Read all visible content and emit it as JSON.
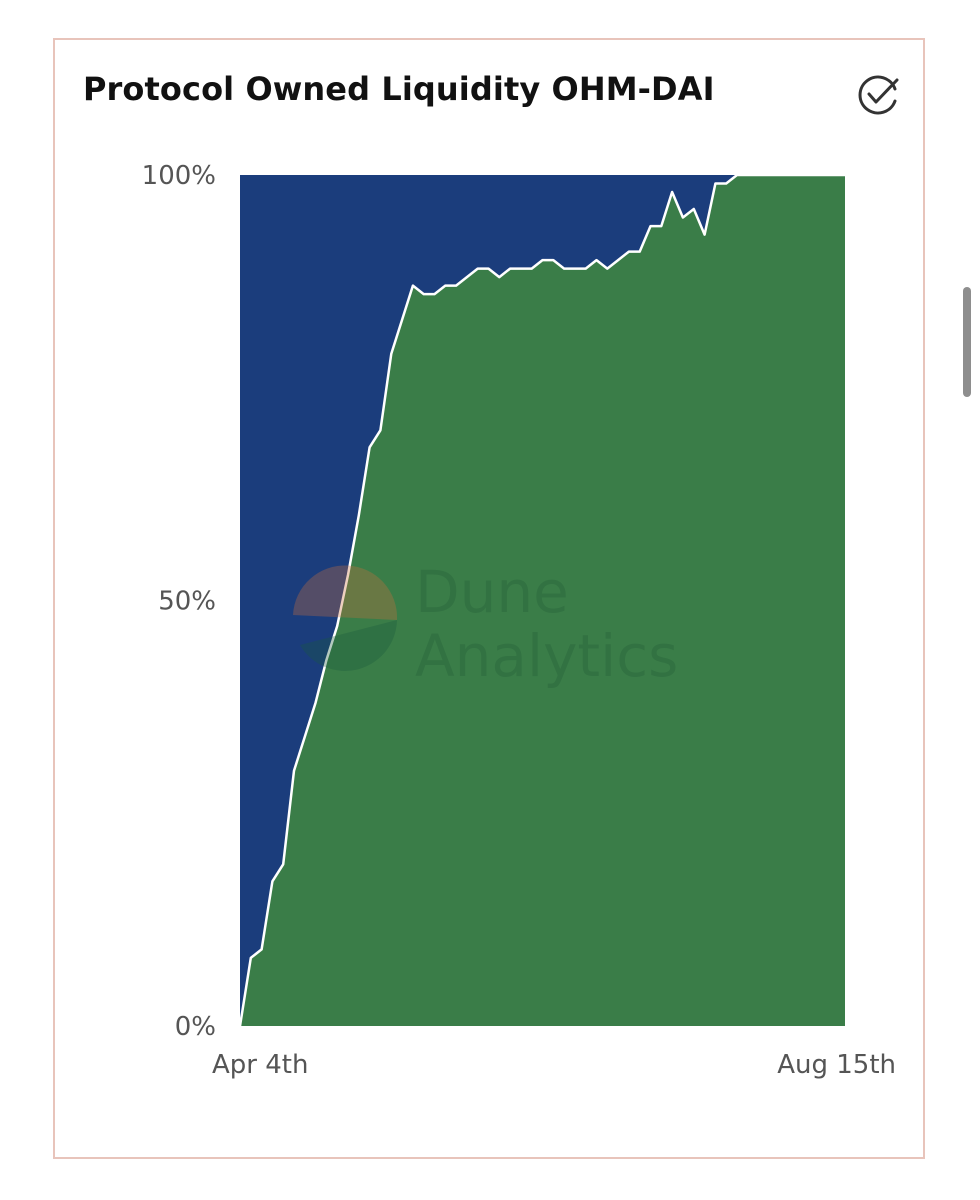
{
  "card": {
    "title": "Protocol Owned Liquidity OHM-DAI"
  },
  "watermark": {
    "line1": "Dune",
    "line2": "Analytics"
  },
  "chart_data": {
    "type": "area",
    "stacked": true,
    "normalized": true,
    "title": "Protocol Owned Liquidity OHM-DAI",
    "ylim": [
      0,
      100
    ],
    "y_ticks": [
      "0%",
      "50%",
      "100%"
    ],
    "x_ticks": [
      "Apr 4th",
      "Aug 15th"
    ],
    "x_range": [
      "Apr 4th",
      "Aug 15th"
    ],
    "grid": false,
    "legend": "none",
    "series_colors": [
      "#3a7d48",
      "#1b3d7c"
    ],
    "boundary_color": "#ffffff",
    "lower_series_percent": [
      0,
      8,
      9,
      17,
      19,
      30,
      34,
      38,
      43,
      47,
      53,
      60,
      68,
      70,
      79,
      83,
      87,
      86,
      86,
      87,
      87,
      88,
      89,
      89,
      88,
      89,
      89,
      89,
      90,
      90,
      89,
      89,
      89,
      90,
      89,
      90,
      91,
      91,
      94,
      94,
      98,
      95,
      96,
      93,
      99,
      99,
      100,
      100,
      100,
      100,
      100,
      100,
      100,
      100,
      100,
      100,
      100
    ]
  }
}
